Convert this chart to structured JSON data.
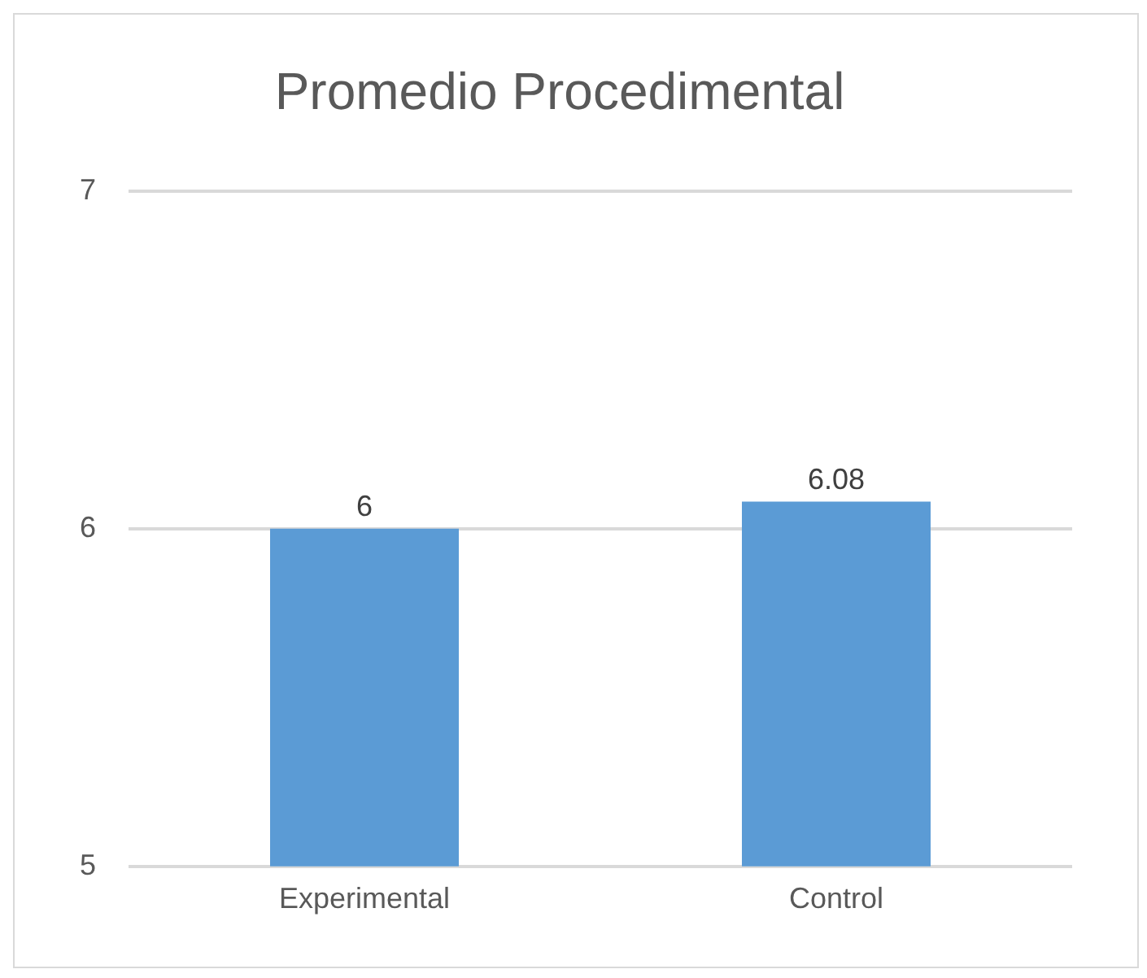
{
  "chart_data": {
    "type": "bar",
    "title": "Promedio Procedimental",
    "categories": [
      "Experimental",
      "Control"
    ],
    "values": [
      6,
      6.08
    ],
    "color": "#5b9bd5",
    "ylim": [
      5,
      7
    ],
    "yticks": [
      5,
      6,
      7
    ],
    "grid": "y",
    "data_labels": true
  }
}
